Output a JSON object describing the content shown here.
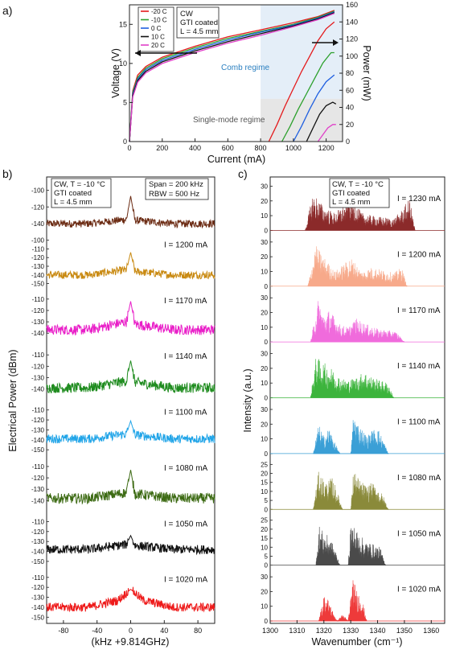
{
  "panel_a": {
    "label": "a)",
    "xlabel": "Current (mA)",
    "ylabel_left": "Voltage (V)",
    "ylabel_right": "Power (mW)",
    "x_ticks": [
      "0",
      "200",
      "400",
      "600",
      "800",
      "1000",
      "1200"
    ],
    "y_left_ticks": [
      "0",
      "5",
      "10",
      "15"
    ],
    "y_right_ticks": [
      "0",
      "20",
      "40",
      "60",
      "80",
      "100",
      "120",
      "140",
      "160"
    ],
    "info_lines": [
      "CW",
      "GTI coated",
      "L = 4.5 mm"
    ],
    "comb_regime_label": "Comb regime",
    "single_mode_label": "Single-mode regime",
    "legend": [
      "-20 C",
      "-10 C",
      "0 C",
      "10 C",
      "20 C"
    ],
    "colors": [
      "#e41a1c",
      "#2ca02c",
      "#1f5fe0",
      "#111111",
      "#e040c8"
    ]
  },
  "panel_b": {
    "label": "b)",
    "xlabel": "(kHz +9.814GHz)",
    "ylabel": "Electrical Power (dBm)",
    "x_ticks": [
      "-80",
      "-40",
      "0",
      "40",
      "80"
    ],
    "info_lines": [
      "CW, T = -10 °C",
      "GTI coated",
      "L = 4.5 mm"
    ],
    "span_lines": [
      "Span = 200 kHz",
      "RBW = 500 Hz"
    ]
  },
  "panel_c": {
    "label": "c)",
    "xlabel": "Wavenumber (cm⁻¹)",
    "ylabel": "Intensity (a.u.)",
    "x_ticks": [
      "1300",
      "1310",
      "1320",
      "1330",
      "1340",
      "1350",
      "1360"
    ],
    "info_lines": [
      "CW, T = -10 °C",
      "GTI coated",
      "L = 4.5 mm"
    ]
  },
  "chart_data": [
    {
      "type": "line",
      "title": "",
      "xlabel": "Current (mA)",
      "ylabel": "Voltage (V)",
      "y2label": "Power (mW)",
      "xlim": [
        0,
        1300
      ],
      "ylim": [
        0,
        17.5
      ],
      "y2lim": [
        0,
        160
      ],
      "regions": [
        {
          "name": "Comb regime",
          "x": [
            800,
            1300
          ],
          "y2": [
            50,
            160
          ]
        },
        {
          "name": "Single-mode regime",
          "x": [
            800,
            1300
          ],
          "y2": [
            0,
            50
          ]
        }
      ],
      "series": [
        {
          "name": "-20 C",
          "axis": "voltage",
          "x": [
            0,
            20,
            50,
            100,
            200,
            400,
            600,
            800,
            1000,
            1150,
            1250
          ],
          "values": [
            0,
            6.5,
            8.5,
            9.6,
            10.8,
            12.2,
            13.4,
            14.3,
            15.2,
            16.0,
            16.8
          ]
        },
        {
          "name": "-10 C",
          "axis": "voltage",
          "x": [
            0,
            20,
            50,
            100,
            200,
            400,
            600,
            800,
            1000,
            1150,
            1250
          ],
          "values": [
            0,
            6.3,
            8.2,
            9.4,
            10.6,
            12.0,
            13.2,
            14.1,
            15.0,
            15.9,
            16.7
          ]
        },
        {
          "name": "0 C",
          "axis": "voltage",
          "x": [
            0,
            20,
            50,
            100,
            200,
            400,
            600,
            800,
            1000,
            1150,
            1250
          ],
          "values": [
            0,
            6.1,
            8.0,
            9.2,
            10.4,
            11.8,
            13.0,
            14.0,
            14.9,
            15.8,
            16.6
          ]
        },
        {
          "name": "10 C",
          "axis": "voltage",
          "x": [
            0,
            20,
            50,
            100,
            200,
            400,
            600,
            800,
            1000,
            1150,
            1250
          ],
          "values": [
            0,
            5.9,
            7.8,
            9.0,
            10.2,
            11.6,
            12.8,
            13.8,
            14.8,
            15.7,
            16.5
          ]
        },
        {
          "name": "20 C",
          "axis": "voltage",
          "x": [
            0,
            20,
            50,
            100,
            200,
            400,
            600,
            800,
            1000,
            1150,
            1250
          ],
          "values": [
            0,
            5.7,
            7.6,
            8.8,
            10.0,
            11.4,
            12.6,
            13.6,
            14.7,
            15.6,
            16.4
          ]
        },
        {
          "name": "-20 C",
          "axis": "power",
          "x": [
            850,
            900,
            950,
            1000,
            1050,
            1100,
            1150,
            1200,
            1250
          ],
          "values": [
            0,
            20,
            42,
            62,
            82,
            100,
            118,
            132,
            140
          ]
        },
        {
          "name": "-10 C",
          "axis": "power",
          "x": [
            930,
            980,
            1030,
            1080,
            1130,
            1180,
            1230,
            1250
          ],
          "values": [
            0,
            18,
            38,
            56,
            74,
            92,
            104,
            104
          ]
        },
        {
          "name": "0 C",
          "axis": "power",
          "x": [
            1000,
            1050,
            1100,
            1150,
            1200,
            1250
          ],
          "values": [
            0,
            18,
            38,
            56,
            70,
            78
          ]
        },
        {
          "name": "10 C",
          "axis": "power",
          "x": [
            1080,
            1120,
            1160,
            1200,
            1240,
            1260
          ],
          "values": [
            0,
            16,
            32,
            42,
            46,
            44
          ]
        },
        {
          "name": "20 C",
          "axis": "power",
          "x": [
            1150,
            1180,
            1210,
            1240,
            1260
          ],
          "values": [
            0,
            8,
            16,
            20,
            20
          ]
        }
      ]
    },
    {
      "type": "line",
      "title": "",
      "xlabel": "(kHz +9.814GHz)",
      "ylabel": "Electrical Power (dBm)",
      "xlim": [
        -100,
        100
      ],
      "series": [
        {
          "name": "I = 1230 mA",
          "color": "#6b2a12",
          "yticks": [
            -100,
            -120,
            -140
          ],
          "ylim": [
            -147,
            -90
          ],
          "noise_floor": -140,
          "peak": -107,
          "x": [
            -100,
            -50,
            -5,
            0,
            5,
            50,
            100
          ],
          "values": [
            -140,
            -140,
            -135,
            -107,
            -136,
            -140,
            -140
          ]
        },
        {
          "name": "I = 1200 mA",
          "color": "#c98a12",
          "yticks": [
            -100,
            -110,
            -120,
            -130,
            -140,
            -150
          ],
          "ylim": [
            -152,
            -97
          ],
          "noise_floor": -140,
          "peak": -114,
          "x": [
            -100,
            -50,
            -5,
            0,
            5,
            50,
            100
          ],
          "values": [
            -140,
            -140,
            -134,
            -114,
            -136,
            -140,
            -140
          ]
        },
        {
          "name": "I = 1170 mA",
          "color": "#e91ec8",
          "yticks": [
            -110,
            -120,
            -130,
            -140
          ],
          "ylim": [
            -147,
            -105
          ],
          "noise_floor": -137,
          "peak": -112,
          "x": [
            -100,
            -50,
            -5,
            0,
            5,
            50,
            100
          ],
          "values": [
            -137,
            -137,
            -130,
            -112,
            -132,
            -137,
            -137
          ]
        },
        {
          "name": "I = 1140 mA",
          "color": "#1f8c1f",
          "yticks": [
            -110,
            -120,
            -130,
            -140
          ],
          "ylim": [
            -147,
            -105
          ],
          "noise_floor": -139,
          "peak": -115,
          "x": [
            -100,
            -50,
            -5,
            0,
            5,
            50,
            100
          ],
          "values": [
            -139,
            -139,
            -133,
            -115,
            -134,
            -139,
            -139
          ]
        },
        {
          "name": "I = 1100 mA",
          "color": "#22a5e8",
          "yticks": [
            -110,
            -120,
            -130,
            -140,
            -150
          ],
          "ylim": [
            -153,
            -105
          ],
          "noise_floor": -139,
          "peak": -121,
          "x": [
            -100,
            -50,
            -5,
            0,
            5,
            50,
            100
          ],
          "values": [
            -139,
            -139,
            -134,
            -121,
            -135,
            -139,
            -139
          ]
        },
        {
          "name": "I = 1080 mA",
          "color": "#3d6b14",
          "yticks": [
            -110,
            -120,
            -130,
            -140
          ],
          "ylim": [
            -147,
            -105
          ],
          "noise_floor": -138,
          "peak": -113,
          "x": [
            -100,
            -50,
            -5,
            0,
            5,
            50,
            100
          ],
          "values": [
            -138,
            -138,
            -133,
            -113,
            -134,
            -138,
            -138
          ]
        },
        {
          "name": "I = 1050 mA",
          "color": "#111111",
          "yticks": [
            -110,
            -120,
            -130,
            -140,
            -150
          ],
          "ylim": [
            -153,
            -105
          ],
          "noise_floor": -138,
          "peak": -124,
          "x": [
            -100,
            -50,
            -5,
            0,
            5,
            50,
            100
          ],
          "values": [
            -138,
            -138,
            -133,
            -124,
            -134,
            -138,
            -138
          ]
        },
        {
          "name": "I = 1020 mA",
          "color": "#ee1a1a",
          "yticks": [
            -110,
            -120,
            -130,
            -140,
            -150
          ],
          "ylim": [
            -153,
            -105
          ],
          "noise_floor": -140,
          "peak": -122,
          "x": [
            -100,
            -50,
            -15,
            0,
            15,
            50,
            100
          ],
          "values": [
            -140,
            -140,
            -133,
            -122,
            -133,
            -140,
            -140
          ]
        }
      ]
    },
    {
      "type": "area",
      "title": "",
      "xlabel": "Wavenumber (cm⁻¹)",
      "ylabel": "Intensity (a.u.)",
      "xlim": [
        1300,
        1365
      ],
      "series": [
        {
          "name": "I = 1230 mA",
          "color": "#8b2a2a",
          "yticks": [
            0,
            10,
            20,
            30
          ],
          "ylim": [
            0,
            33
          ],
          "x": [
            1313,
            1316,
            1320,
            1324,
            1328,
            1330,
            1334,
            1338,
            1342,
            1346,
            1349,
            1352,
            1354
          ],
          "values": [
            0,
            26,
            16,
            12,
            18,
            24,
            12,
            10,
            9,
            8,
            14,
            22,
            0
          ]
        },
        {
          "name": "I = 1200 mA",
          "color": "#f7a98a",
          "yticks": [
            0,
            10,
            20,
            30
          ],
          "ylim": [
            0,
            33
          ],
          "x": [
            1314,
            1317,
            1320,
            1324,
            1328,
            1330,
            1334,
            1338,
            1342,
            1346,
            1349,
            1351
          ],
          "values": [
            0,
            28,
            20,
            10,
            16,
            20,
            10,
            13,
            11,
            9,
            13,
            0
          ]
        },
        {
          "name": "I = 1170 mA",
          "color": "#f06bdc",
          "yticks": [
            0,
            10,
            20,
            30
          ],
          "ylim": [
            0,
            33
          ],
          "x": [
            1315,
            1318,
            1320,
            1322,
            1326,
            1329,
            1332,
            1336,
            1340,
            1344,
            1347,
            1350
          ],
          "values": [
            0,
            30,
            18,
            22,
            12,
            10,
            16,
            12,
            9,
            8,
            7,
            0
          ]
        },
        {
          "name": "I = 1140 mA",
          "color": "#3cb43c",
          "yticks": [
            0,
            10,
            20,
            30
          ],
          "ylim": [
            0,
            33
          ],
          "x": [
            1315,
            1317,
            1320,
            1323,
            1326,
            1329,
            1332,
            1335,
            1338,
            1341,
            1344,
            1346
          ],
          "values": [
            0,
            28,
            24,
            20,
            14,
            12,
            14,
            18,
            14,
            12,
            10,
            0
          ]
        },
        {
          "name": "I = 1100 mA",
          "color": "#3a9fd6",
          "yticks": [
            0,
            10,
            20,
            30
          ],
          "ylim": [
            0,
            33
          ],
          "x": [
            1316,
            1318,
            1320,
            1322,
            1324,
            1326,
            1330,
            1331,
            1333,
            1336,
            1338,
            1340,
            1342,
            1344
          ],
          "values": [
            0,
            20,
            12,
            18,
            8,
            0,
            0,
            28,
            20,
            12,
            16,
            18,
            10,
            0
          ]
        },
        {
          "name": "I = 1080 mA",
          "color": "#8a8a3a",
          "yticks": [
            0,
            5,
            10,
            15,
            20,
            25
          ],
          "ylim": [
            0,
            27
          ],
          "x": [
            1316,
            1318,
            1321,
            1323,
            1325,
            1327,
            1330,
            1331,
            1333,
            1336,
            1338,
            1340,
            1342,
            1344
          ],
          "values": [
            0,
            21,
            15,
            18,
            10,
            0,
            0,
            23,
            17,
            13,
            15,
            12,
            8,
            0
          ]
        },
        {
          "name": "I = 1050 mA",
          "color": "#4a4a4a",
          "yticks": [
            0,
            5,
            10,
            15,
            20,
            25
          ],
          "ylim": [
            0,
            27
          ],
          "x": [
            1317,
            1318,
            1320,
            1322,
            1324,
            1326,
            1329,
            1330,
            1332,
            1335,
            1338,
            1341,
            1343
          ],
          "values": [
            0,
            23,
            18,
            16,
            10,
            0,
            0,
            25,
            20,
            14,
            12,
            10,
            0
          ]
        },
        {
          "name": "I = 1020 mA",
          "color": "#ee3a3a",
          "yticks": [
            0,
            10,
            20,
            30
          ],
          "ylim": [
            0,
            33
          ],
          "x": [
            1318,
            1320,
            1322,
            1323,
            1325,
            1327,
            1329,
            1330,
            1331,
            1332,
            1334,
            1336
          ],
          "values": [
            0,
            18,
            14,
            8,
            0,
            5,
            0,
            18,
            30,
            22,
            18,
            0
          ]
        }
      ]
    }
  ]
}
